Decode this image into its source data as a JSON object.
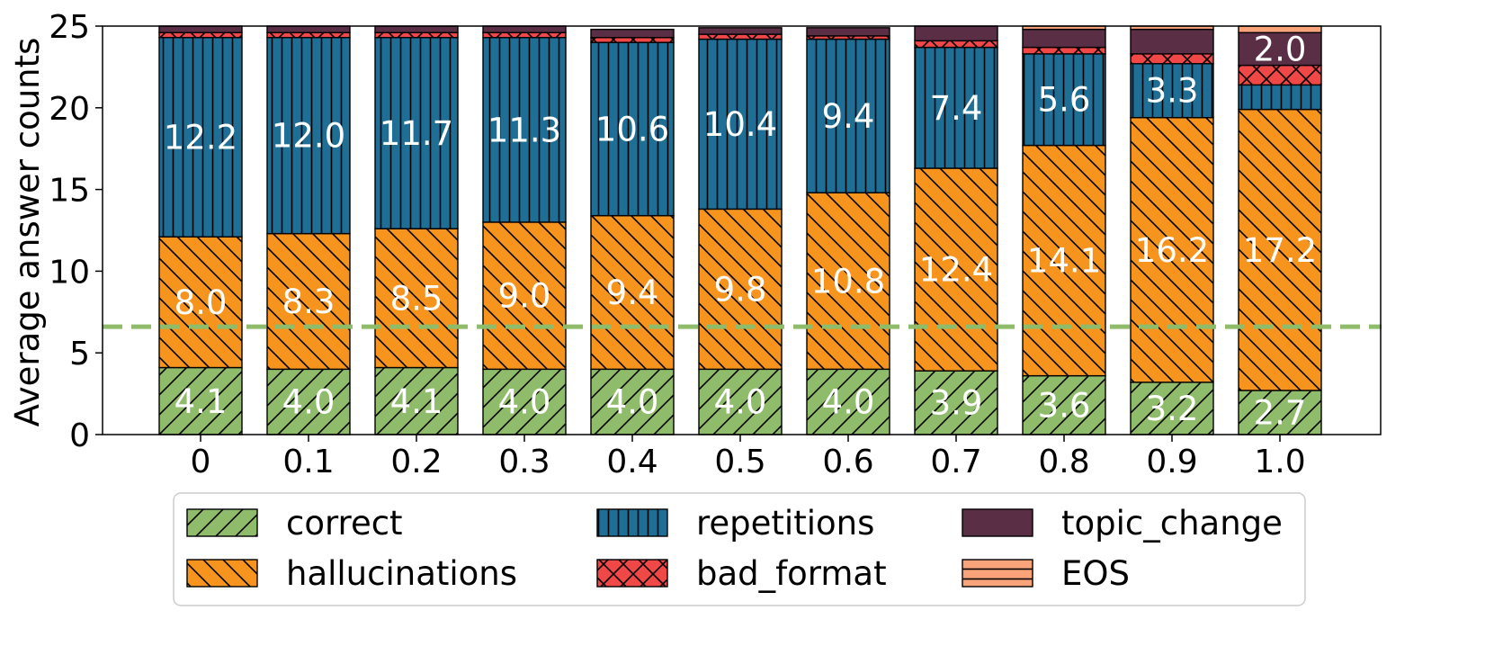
{
  "chart_data": {
    "type": "bar",
    "stacked": true,
    "title": "",
    "xlabel": "",
    "ylabel": "Average answer counts",
    "ylim": [
      0,
      25
    ],
    "yticks": [
      0,
      5,
      10,
      15,
      20,
      25
    ],
    "categories": [
      "0",
      "0.1",
      "0.2",
      "0.3",
      "0.4",
      "0.5",
      "0.6",
      "0.7",
      "0.8",
      "0.9",
      "1.0"
    ],
    "series": [
      {
        "name": "correct",
        "color": "#8fbc6a",
        "pattern": "diag-fwd",
        "values": [
          4.1,
          4.0,
          4.1,
          4.0,
          4.0,
          4.0,
          4.0,
          3.9,
          3.6,
          3.2,
          2.7
        ],
        "labels": [
          "4.1",
          "4.0",
          "4.1",
          "4.0",
          "4.0",
          "4.0",
          "4.0",
          "3.9",
          "3.6",
          "3.2",
          "2.7"
        ]
      },
      {
        "name": "hallucinations",
        "color": "#f7941d",
        "pattern": "diag-back",
        "values": [
          8.0,
          8.3,
          8.5,
          9.0,
          9.4,
          9.8,
          10.8,
          12.4,
          14.1,
          16.2,
          17.2
        ],
        "labels": [
          "8.0",
          "8.3",
          "8.5",
          "9.0",
          "9.4",
          "9.8",
          "10.8",
          "12.4",
          "14.1",
          "16.2",
          "17.2"
        ]
      },
      {
        "name": "repetitions",
        "color": "#1f6e96",
        "pattern": "vertical",
        "values": [
          12.2,
          12.0,
          11.7,
          11.3,
          10.6,
          10.4,
          9.4,
          7.4,
          5.6,
          3.3,
          1.5
        ],
        "labels": [
          "12.2",
          "12.0",
          "11.7",
          "11.3",
          "10.6",
          "10.4",
          "9.4",
          "7.4",
          "5.6",
          "3.3",
          ""
        ]
      },
      {
        "name": "bad_format",
        "color": "#f04747",
        "pattern": "cross",
        "values": [
          0.3,
          0.3,
          0.3,
          0.3,
          0.3,
          0.3,
          0.2,
          0.4,
          0.4,
          0.6,
          1.2
        ],
        "labels": [
          "",
          "",
          "",
          "",
          "",
          "",
          "",
          "",
          "",
          "",
          ""
        ]
      },
      {
        "name": "topic_change",
        "color": "#5a2e45",
        "pattern": "none",
        "values": [
          0.4,
          0.4,
          0.4,
          0.4,
          0.5,
          0.4,
          0.5,
          0.9,
          1.1,
          1.5,
          2.0
        ],
        "labels": [
          "",
          "",
          "",
          "",
          "",
          "",
          "",
          "",
          "",
          "",
          "2.0"
        ]
      },
      {
        "name": "EOS",
        "color": "#f9a37a",
        "pattern": "horizontal",
        "values": [
          0,
          0,
          0,
          0,
          0,
          0,
          0,
          0,
          0.2,
          0.2,
          0.4
        ],
        "labels": [
          "",
          "",
          "",
          "",
          "",
          "",
          "",
          "",
          "",
          "",
          ""
        ]
      }
    ],
    "reference_line": {
      "value": 6.6,
      "color": "#8fbc6a",
      "style": "dashed"
    },
    "legend": {
      "position": "bottom",
      "columns": 3,
      "order": [
        "correct",
        "hallucinations",
        "repetitions",
        "bad_format",
        "topic_change",
        "EOS"
      ]
    }
  }
}
